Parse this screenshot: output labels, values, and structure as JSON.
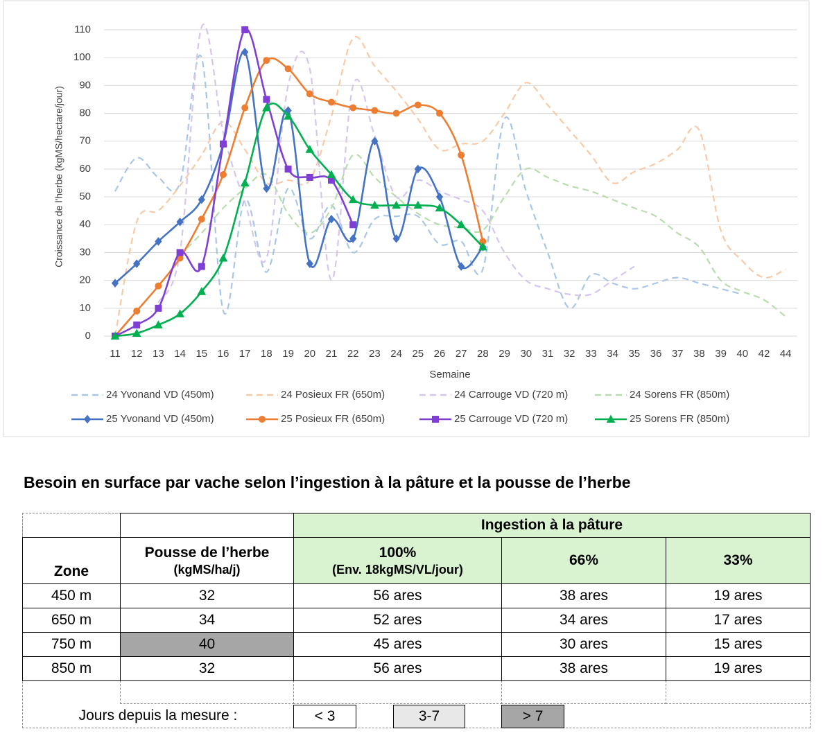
{
  "chart_data": {
    "type": "line",
    "y_label": "Croissance de l'herbe (kgMS/hectare/jour)",
    "x_label": "Semaine",
    "categories": [
      11,
      12,
      13,
      14,
      15,
      16,
      17,
      18,
      19,
      20,
      21,
      22,
      23,
      24,
      25,
      26,
      27,
      28,
      29,
      30,
      31,
      32,
      33,
      34,
      35,
      36,
      37,
      38,
      39,
      40,
      42,
      44
    ],
    "ylim": [
      0,
      110
    ],
    "yticks": [
      0,
      10,
      20,
      30,
      40,
      50,
      60,
      70,
      80,
      90,
      100,
      110
    ],
    "grid": true,
    "series": [
      {
        "name": "24 Yvonand VD (450m)",
        "color": "#a9c6e8",
        "dashed": true,
        "values": [
          52,
          64,
          57,
          55,
          100,
          9,
          49,
          23,
          53,
          35,
          47,
          30,
          42,
          43,
          43,
          33,
          34,
          24,
          78,
          52,
          30,
          10,
          22,
          19,
          17,
          19,
          21,
          19,
          17,
          15,
          null,
          null
        ]
      },
      {
        "name": "24 Posieux FR (650m)",
        "color": "#f9c9a6",
        "dashed": true,
        "values": [
          0,
          41,
          45,
          54,
          65,
          77,
          67,
          55,
          56,
          56,
          79,
          107,
          97,
          88,
          78,
          67,
          69,
          70,
          80,
          91,
          83,
          74,
          65,
          55,
          59,
          62,
          67,
          74,
          38,
          27,
          21,
          24
        ]
      },
      {
        "name": "24 Carrouge VD (720 m)",
        "color": "#d6c6ef",
        "dashed": true,
        "values": [
          null,
          null,
          12,
          30,
          111,
          73,
          48,
          28,
          90,
          96,
          20,
          90,
          72,
          50,
          56,
          52,
          49,
          45,
          30,
          20,
          17,
          15,
          15,
          20,
          25,
          null,
          null,
          null,
          null,
          null,
          null,
          null
        ]
      },
      {
        "name": "24 Sorens FR (850m)",
        "color": "#b9dcae",
        "dashed": true,
        "values": [
          null,
          null,
          null,
          29,
          37,
          46,
          53,
          58,
          44,
          37,
          46,
          65,
          57,
          50,
          44,
          40,
          39,
          38,
          50,
          60,
          57,
          54,
          52,
          49,
          46,
          43,
          37,
          32,
          20,
          16,
          13,
          7
        ]
      },
      {
        "name": "25 Yvonand VD (450m)",
        "color": "#4472c4",
        "marker": "diamond",
        "values": [
          19,
          26,
          34,
          41,
          49,
          69,
          102,
          53,
          81,
          26,
          42,
          35,
          70,
          35,
          60,
          50,
          25,
          32,
          null,
          null,
          null,
          null,
          null,
          null,
          null,
          null,
          null,
          null,
          null,
          null,
          null,
          null
        ]
      },
      {
        "name": "25 Posieux FR (650m)",
        "color": "#ed7d31",
        "marker": "circle",
        "values": [
          0,
          9,
          18,
          28,
          42,
          58,
          82,
          99,
          96,
          87,
          84,
          82,
          81,
          80,
          83,
          80,
          65,
          34,
          null,
          null,
          null,
          null,
          null,
          null,
          null,
          null,
          null,
          null,
          null,
          null,
          null,
          null
        ]
      },
      {
        "name": "25 Carrouge VD (720 m)",
        "color": "#7f3fd4",
        "marker": "square",
        "values": [
          0,
          4,
          10,
          30,
          25,
          69,
          110,
          85,
          60,
          57,
          56,
          40,
          null,
          null,
          null,
          null,
          null,
          null,
          null,
          null,
          null,
          null,
          null,
          null,
          null,
          null,
          null,
          null,
          null,
          null,
          null,
          null
        ]
      },
      {
        "name": "25 Sorens FR (850m)",
        "color": "#00b050",
        "marker": "triangle",
        "values": [
          0,
          1,
          4,
          8,
          16,
          28,
          55,
          82,
          79,
          67,
          58,
          49,
          47,
          47,
          47,
          46,
          40,
          32,
          null,
          null,
          null,
          null,
          null,
          null,
          null,
          null,
          null,
          null,
          null,
          null,
          null,
          null
        ]
      }
    ]
  },
  "table": {
    "title": "Besoin en surface par vache selon l’ingestion à la pâture et la pousse de l’herbe",
    "group": "Ingestion à la pâture",
    "columns": [
      {
        "label": "Zone"
      },
      {
        "label": "Pousse de l’herbe",
        "sub": "(kgMS/ha/j)"
      },
      {
        "label": "100%",
        "sub": "(Env. 18kgMS/VL/jour)"
      },
      {
        "label": "66%"
      },
      {
        "label": "33%"
      }
    ],
    "rows": [
      [
        "450 m",
        "32",
        "56 ares",
        "38 ares",
        "19 ares"
      ],
      [
        "650 m",
        "34",
        "52 ares",
        "34 ares",
        "17 ares"
      ],
      [
        "750 m",
        "40",
        "45 ares",
        "30 ares",
        "15 ares"
      ],
      [
        "850 m",
        "32",
        "56 ares",
        "38 ares",
        "19 ares"
      ]
    ],
    "legend_label": "Jours depuis la mesure :",
    "legend": [
      "< 3",
      "3-7",
      "> 7"
    ]
  }
}
